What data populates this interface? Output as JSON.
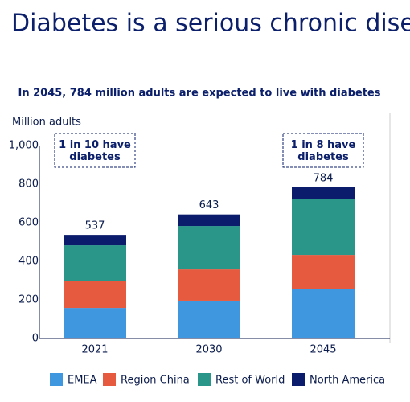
{
  "chart_data": {
    "type": "stacked-bar",
    "title": "Diabetes is a serious chronic disease",
    "subtitle": "In 2045, 784 million adults are expected to live with diabetes",
    "y_label": "Million adults",
    "categories": [
      "2021",
      "2030",
      "2045"
    ],
    "series": [
      {
        "name": "EMEA",
        "color": "#3f97e0",
        "values": [
          158,
          196,
          258
        ]
      },
      {
        "name": "Region China",
        "color": "#e65a40",
        "values": [
          138,
          162,
          175
        ]
      },
      {
        "name": "Rest of World",
        "color": "#2a9589",
        "values": [
          187,
          225,
          288
        ]
      },
      {
        "name": "North America",
        "color": "#0b1c6c",
        "values": [
          54,
          60,
          63
        ]
      }
    ],
    "totals": [
      537,
      643,
      784
    ],
    "annotations": [
      {
        "text": "1 in 10 have diabetes",
        "category": "2021"
      },
      {
        "text": "1 in 8 have diabetes",
        "category": "2045"
      }
    ],
    "ylim": [
      0,
      1000
    ],
    "yticks": [
      0,
      200,
      400,
      600,
      800,
      {
        "value": 1000,
        "label": "1,000"
      }
    ],
    "legend": "bottom"
  }
}
